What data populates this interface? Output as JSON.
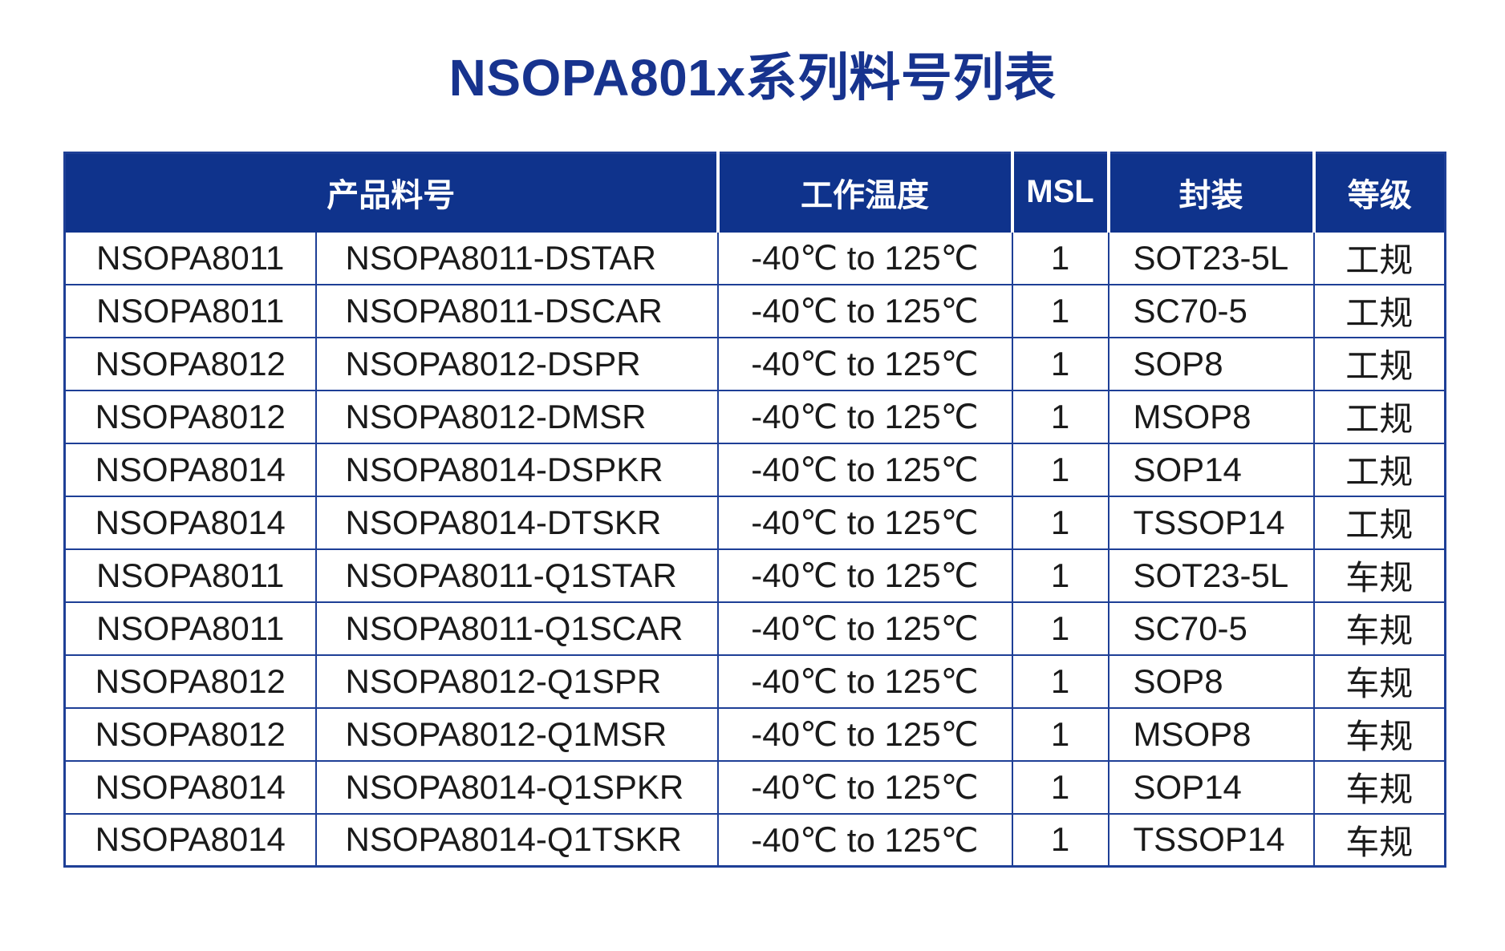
{
  "title": "NSOPA801x系列料号列表",
  "colors": {
    "title_text": "#17338e",
    "header_background": "#0f338c",
    "header_text": "#ffffff",
    "table_border": "#1e3f96",
    "cell_text": "#1a1a1a"
  },
  "table": {
    "headers": {
      "product_pn": "产品料号",
      "temp": "工作温度",
      "msl": "MSL",
      "package": "封装",
      "grade": "等级"
    },
    "rows": [
      {
        "series": "NSOPA8011",
        "pn": "NSOPA8011-DSTAR",
        "temp": "-40℃ to 125℃",
        "msl": "1",
        "package": "SOT23-5L",
        "grade": "工规"
      },
      {
        "series": "NSOPA8011",
        "pn": "NSOPA8011-DSCAR",
        "temp": "-40℃ to 125℃",
        "msl": "1",
        "package": "SC70-5",
        "grade": "工规"
      },
      {
        "series": "NSOPA8012",
        "pn": "NSOPA8012-DSPR",
        "temp": "-40℃ to 125℃",
        "msl": "1",
        "package": "SOP8",
        "grade": "工规"
      },
      {
        "series": "NSOPA8012",
        "pn": "NSOPA8012-DMSR",
        "temp": "-40℃ to 125℃",
        "msl": "1",
        "package": "MSOP8",
        "grade": "工规"
      },
      {
        "series": "NSOPA8014",
        "pn": "NSOPA8014-DSPKR",
        "temp": "-40℃ to 125℃",
        "msl": "1",
        "package": "SOP14",
        "grade": "工规"
      },
      {
        "series": "NSOPA8014",
        "pn": "NSOPA8014-DTSKR",
        "temp": "-40℃ to 125℃",
        "msl": "1",
        "package": "TSSOP14",
        "grade": "工规"
      },
      {
        "series": "NSOPA8011",
        "pn": "NSOPA8011-Q1STAR",
        "temp": "-40℃ to 125℃",
        "msl": "1",
        "package": "SOT23-5L",
        "grade": "车规"
      },
      {
        "series": "NSOPA8011",
        "pn": "NSOPA8011-Q1SCAR",
        "temp": "-40℃ to 125℃",
        "msl": "1",
        "package": "SC70-5",
        "grade": "车规"
      },
      {
        "series": "NSOPA8012",
        "pn": "NSOPA8012-Q1SPR",
        "temp": "-40℃ to 125℃",
        "msl": "1",
        "package": "SOP8",
        "grade": "车规"
      },
      {
        "series": "NSOPA8012",
        "pn": "NSOPA8012-Q1MSR",
        "temp": "-40℃ to 125℃",
        "msl": "1",
        "package": "MSOP8",
        "grade": "车规"
      },
      {
        "series": "NSOPA8014",
        "pn": "NSOPA8014-Q1SPKR",
        "temp": "-40℃ to 125℃",
        "msl": "1",
        "package": "SOP14",
        "grade": "车规"
      },
      {
        "series": "NSOPA8014",
        "pn": "NSOPA8014-Q1TSKR",
        "temp": "-40℃ to 125℃",
        "msl": "1",
        "package": "TSSOP14",
        "grade": "车规"
      }
    ]
  }
}
